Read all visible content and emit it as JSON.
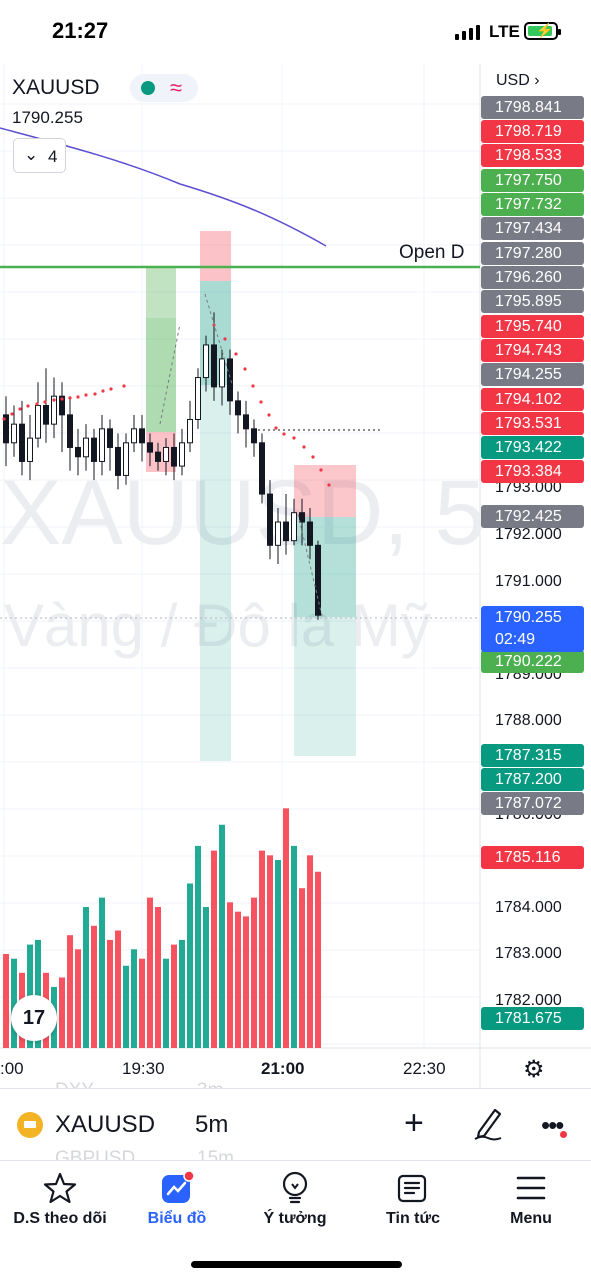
{
  "status": {
    "time": "21:27",
    "network": "LTE"
  },
  "chart": {
    "symbol": "XAUUSD",
    "last_price": "1790.255",
    "indicators_count": "4",
    "currency": "USD",
    "watermark_symbol": "XAUUSD, 5",
    "watermark_desc": "Vàng / Đô la Mỹ",
    "open_line_label": "Open D",
    "countdown": "02:49",
    "axis_labels": [
      "1793.000",
      "1792.000",
      "1791.000",
      "1789.000",
      "1788.000",
      "1786.000",
      "1784.000",
      "1783.000",
      "1782.000"
    ],
    "price_tags": [
      {
        "value": "1798.841",
        "color": "gray"
      },
      {
        "value": "1798.719",
        "color": "red"
      },
      {
        "value": "1798.533",
        "color": "red"
      },
      {
        "value": "1797.750",
        "color": "green"
      },
      {
        "value": "1797.732",
        "color": "green"
      },
      {
        "value": "1797.434",
        "color": "gray"
      },
      {
        "value": "1797.280",
        "color": "gray"
      },
      {
        "value": "1796.260",
        "color": "gray"
      },
      {
        "value": "1795.895",
        "color": "gray"
      },
      {
        "value": "1795.740",
        "color": "red"
      },
      {
        "value": "1794.743",
        "color": "red"
      },
      {
        "value": "1794.255",
        "color": "gray"
      },
      {
        "value": "1794.102",
        "color": "red"
      },
      {
        "value": "1793.531",
        "color": "red"
      },
      {
        "value": "1793.422",
        "color": "teal"
      },
      {
        "value": "1793.384",
        "color": "red"
      },
      {
        "value": "1792.425",
        "color": "gray"
      },
      {
        "value": "1790.222",
        "color": "green"
      },
      {
        "value": "1787.315",
        "color": "teal"
      },
      {
        "value": "1787.200",
        "color": "teal"
      },
      {
        "value": "1787.072",
        "color": "gray"
      },
      {
        "value": "1785.116",
        "color": "red"
      },
      {
        "value": "1781.675",
        "color": "teal"
      }
    ],
    "time_labels": [
      ":00",
      "19:30",
      "21:00",
      "22:30"
    ],
    "ghost_rows": [
      {
        "symbol": "DXY",
        "interval": "3m"
      },
      {
        "symbol": "GBPUSD",
        "interval": "15m"
      }
    ],
    "colors": {
      "up": "#089981",
      "down": "#f23645",
      "ma": "#5b4ed1",
      "open_line": "#4caf50",
      "psar": "#f23645"
    }
  },
  "chart_data": {
    "type": "candlestick",
    "symbol": "XAUUSD",
    "interval": "5m",
    "open_line": 1795.9,
    "candles": [
      [
        1794.6,
        1794.0,
        1795.0,
        1793.5
      ],
      [
        1794.0,
        1794.4,
        1794.8,
        1793.7
      ],
      [
        1794.4,
        1793.6,
        1794.9,
        1793.3
      ],
      [
        1793.6,
        1794.1,
        1794.6,
        1793.2
      ],
      [
        1794.1,
        1794.8,
        1795.3,
        1793.9
      ],
      [
        1794.8,
        1794.4,
        1795.6,
        1794.0
      ],
      [
        1794.4,
        1795.0,
        1795.4,
        1794.1
      ],
      [
        1795.0,
        1794.6,
        1795.3,
        1793.8
      ],
      [
        1794.6,
        1793.9,
        1795.0,
        1793.4
      ],
      [
        1793.9,
        1793.7,
        1794.3,
        1793.3
      ],
      [
        1793.7,
        1794.1,
        1794.4,
        1793.4
      ],
      [
        1794.1,
        1793.6,
        1794.3,
        1793.2
      ],
      [
        1793.6,
        1794.3,
        1794.6,
        1793.3
      ],
      [
        1794.3,
        1793.9,
        1794.5,
        1793.4
      ],
      [
        1793.9,
        1793.3,
        1794.2,
        1793.0
      ],
      [
        1793.3,
        1794.0,
        1794.2,
        1793.1
      ],
      [
        1794.0,
        1794.3,
        1794.6,
        1793.8
      ],
      [
        1794.3,
        1794.0,
        1794.6,
        1793.6
      ],
      [
        1794.0,
        1793.8,
        1794.2,
        1793.5
      ],
      [
        1793.8,
        1793.6,
        1794.0,
        1793.4
      ],
      [
        1793.6,
        1793.9,
        1794.1,
        1793.3
      ],
      [
        1793.9,
        1793.5,
        1794.2,
        1793.2
      ],
      [
        1793.5,
        1794.0,
        1794.3,
        1793.3
      ],
      [
        1794.0,
        1794.5,
        1794.9,
        1793.8
      ],
      [
        1794.5,
        1795.4,
        1795.6,
        1794.3
      ],
      [
        1795.4,
        1796.1,
        1796.3,
        1795.1
      ],
      [
        1796.1,
        1795.2,
        1796.8,
        1794.9
      ],
      [
        1795.2,
        1795.8,
        1796.0,
        1794.8
      ],
      [
        1795.8,
        1794.9,
        1796.0,
        1794.6
      ],
      [
        1794.9,
        1794.6,
        1795.1,
        1794.2
      ],
      [
        1794.6,
        1794.3,
        1794.9,
        1793.9
      ],
      [
        1794.3,
        1794.0,
        1794.5,
        1793.7
      ],
      [
        1794.0,
        1792.9,
        1794.2,
        1792.7
      ],
      [
        1792.9,
        1791.8,
        1793.2,
        1791.5
      ],
      [
        1791.8,
        1792.3,
        1792.6,
        1791.4
      ],
      [
        1792.3,
        1791.9,
        1792.9,
        1791.6
      ],
      [
        1791.9,
        1792.5,
        1792.8,
        1791.8
      ],
      [
        1792.5,
        1792.3,
        1792.8,
        1791.8
      ],
      [
        1792.3,
        1791.8,
        1792.6,
        1791.5
      ],
      [
        1791.8,
        1790.3,
        1791.9,
        1790.2
      ]
    ],
    "volumes": [
      40,
      38,
      32,
      44,
      46,
      32,
      26,
      30,
      48,
      42,
      60,
      52,
      64,
      46,
      50,
      35,
      42,
      38,
      64,
      60,
      38,
      44,
      46,
      70,
      86,
      60,
      84,
      95,
      62,
      58,
      56,
      64,
      84,
      82,
      80,
      102,
      86,
      68,
      82,
      75
    ]
  },
  "toolbar": {
    "symbol": "XAUUSD",
    "interval": "5m"
  },
  "nav": {
    "watchlist": "D.S theo dõi",
    "chart": "Biểu đồ",
    "ideas": "Ý tưởng",
    "news": "Tin tức",
    "menu": "Menu"
  }
}
